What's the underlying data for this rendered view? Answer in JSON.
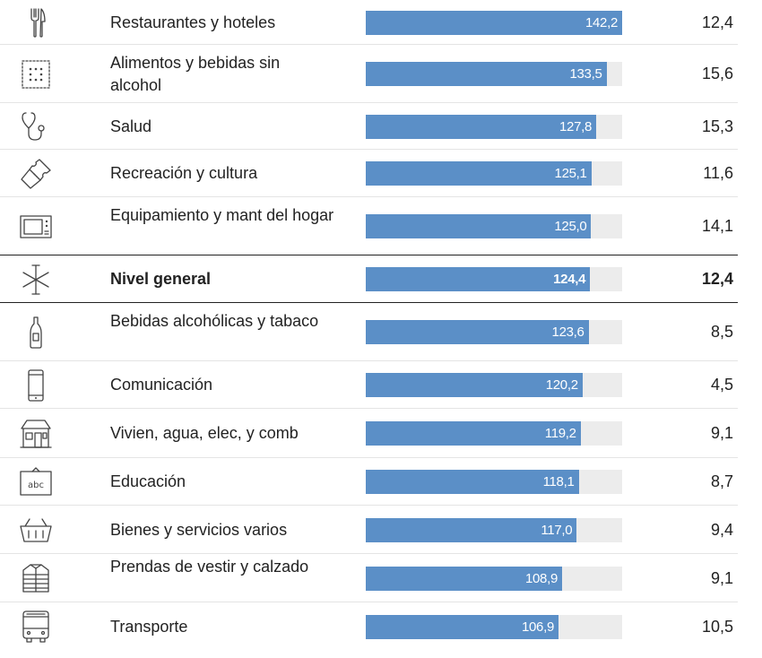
{
  "chart_data": {
    "type": "bar",
    "orientation": "horizontal",
    "xlim": [
      0,
      142.2
    ],
    "rows": [
      {
        "label": "Restaurantes y hoteles",
        "value": 142.2,
        "value_label": "142,2",
        "rate": "12,4",
        "icon": "fork-knife-icon",
        "highlight": false
      },
      {
        "label": "Alimentos y bebidas sin alcohol",
        "value": 133.5,
        "value_label": "133,5",
        "rate": "15,6",
        "icon": "cracker-icon",
        "highlight": false
      },
      {
        "label": "Salud",
        "value": 127.8,
        "value_label": "127,8",
        "rate": "15,3",
        "icon": "stethoscope-icon",
        "highlight": false
      },
      {
        "label": "Recreación y cultura",
        "value": 125.1,
        "value_label": "125,1",
        "rate": "11,6",
        "icon": "ticket-icon",
        "highlight": false
      },
      {
        "label": "Equipamiento y mant del hogar",
        "value": 125.0,
        "value_label": "125,0",
        "rate": "14,1",
        "icon": "microwave-icon",
        "highlight": false
      },
      {
        "label": "Nivel general",
        "value": 124.4,
        "value_label": "124,4",
        "rate": "12,4",
        "icon": "asterisk-icon",
        "highlight": true
      },
      {
        "label": "Bebidas alcohólicas y tabaco",
        "value": 123.6,
        "value_label": "123,6",
        "rate": "8,5",
        "icon": "bottle-icon",
        "highlight": false
      },
      {
        "label": "Comunicación",
        "value": 120.2,
        "value_label": "120,2",
        "rate": "4,5",
        "icon": "phone-icon",
        "highlight": false
      },
      {
        "label": "Vivien, agua, elec, y comb",
        "value": 119.2,
        "value_label": "119,2",
        "rate": "9,1",
        "icon": "house-icon",
        "highlight": false
      },
      {
        "label": "Educación",
        "value": 118.1,
        "value_label": "118,1",
        "rate": "8,7",
        "icon": "blackboard-icon",
        "highlight": false
      },
      {
        "label": "Bienes y servicios varios",
        "value": 117.0,
        "value_label": "117,0",
        "rate": "9,4",
        "icon": "basket-icon",
        "highlight": false
      },
      {
        "label": "Prendas de vestir y calzado",
        "value": 108.9,
        "value_label": "108,9",
        "rate": "9,1",
        "icon": "jacket-icon",
        "highlight": false
      },
      {
        "label": "Transporte",
        "value": 106.9,
        "value_label": "106,9",
        "rate": "10,5",
        "icon": "bus-icon",
        "highlight": false
      }
    ]
  },
  "icon_text": {
    "blackboard": "abc"
  },
  "colors": {
    "bar": "#5b8fc7",
    "track": "#ececec",
    "text": "#222222",
    "divider": "#e4e4e4",
    "strong_divider": "#222222",
    "icon": "#444444"
  }
}
